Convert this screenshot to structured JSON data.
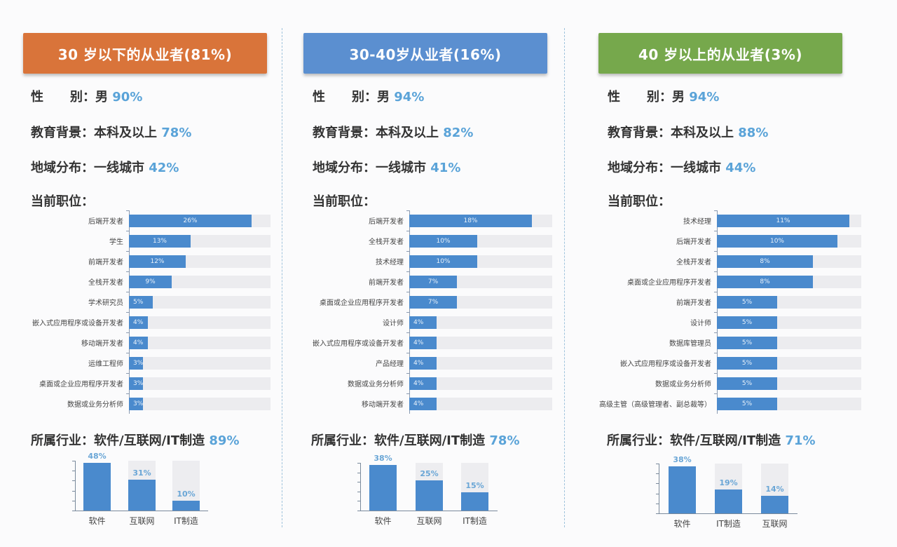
{
  "panels": [
    {
      "header": "30 岁以下的从业者(81%)",
      "header_color": "#d9743a",
      "gender_label_a": "性",
      "gender_label_b": "别",
      "gender_value": "：男",
      "gender_pct": "90%",
      "edu_label": "教育背景",
      "edu_value": "：本科及以上",
      "edu_pct": "78%",
      "region_label": "地域分布",
      "region_value": "：一线城市",
      "region_pct": "42%",
      "position_title": "当前职位：",
      "industry_label": "所属行业：软件/互联网/IT制造",
      "industry_pct": "89%"
    },
    {
      "header": "30-40岁从业者(16%)",
      "header_color": "#5b8fd0",
      "gender_label_a": "性",
      "gender_label_b": "别",
      "gender_value": "：男",
      "gender_pct": "94%",
      "edu_label": "教育背景",
      "edu_value": "：本科及以上",
      "edu_pct": "82%",
      "region_label": "地域分布",
      "region_value": "：一线城市",
      "region_pct": "41%",
      "position_title": "当前职位：",
      "industry_label": "所属行业：软件/互联网/IT制造",
      "industry_pct": "78%"
    },
    {
      "header": "40 岁以上的从业者(3%)",
      "header_color": "#76a84c",
      "gender_label_a": "性",
      "gender_label_b": "别",
      "gender_value": "：男",
      "gender_pct": "94%",
      "edu_label": "教育背景",
      "edu_value": "：本科及以上",
      "edu_pct": "88%",
      "region_label": "地域分布",
      "region_value": "：一线城市",
      "region_pct": "44%",
      "position_title": "当前职位：",
      "industry_label": "所属行业：软件/互联网/IT制造",
      "industry_pct": "71%"
    }
  ],
  "chart_data": [
    {
      "type": "bar",
      "orientation": "horizontal",
      "title": "30 岁以下的从业者(81%) - 当前职位",
      "categories": [
        "后端开发者",
        "学生",
        "前端开发者",
        "全栈开发者",
        "学术研究员",
        "嵌入式应用程序或设备开发者",
        "移动端开发者",
        "运维工程师",
        "桌面或企业应用程序开发者",
        "数据或业务分析师"
      ],
      "values": [
        26,
        13,
        12,
        9,
        5,
        4,
        4,
        3,
        3,
        3
      ],
      "labels": [
        "26%",
        "13%",
        "12%",
        "9%",
        "5%",
        "4%",
        "4%",
        "3%",
        "3%",
        "3%"
      ],
      "unit": "%",
      "xlim": [
        0,
        30
      ]
    },
    {
      "type": "bar",
      "orientation": "horizontal",
      "title": "30-40岁从业者(16%) - 当前职位",
      "categories": [
        "后端开发者",
        "全栈开发者",
        "技术经理",
        "前端开发者",
        "桌面或企业应用程序开发者",
        "设计师",
        "嵌入式应用程序或设备开发者",
        "产品经理",
        "数据或业务分析师",
        "移动端开发者"
      ],
      "values": [
        18,
        10,
        10,
        7,
        7,
        4,
        4,
        4,
        4,
        4
      ],
      "labels": [
        "18%",
        "10%",
        "10%",
        "7%",
        "7%",
        "4%",
        "4%",
        "4%",
        "4%",
        "4%"
      ],
      "unit": "%",
      "xlim": [
        0,
        21
      ]
    },
    {
      "type": "bar",
      "orientation": "horizontal",
      "title": "40 岁以上的从业者(3%) - 当前职位",
      "categories": [
        "技术经理",
        "后端开发者",
        "全栈开发者",
        "桌面或企业应用程序开发者",
        "前端开发者",
        "设计师",
        "数据库管理员",
        "嵌入式应用程序或设备开发者",
        "数据或业务分析师",
        "高级主管（高级管理者、副总裁等）"
      ],
      "values": [
        11,
        10,
        8,
        8,
        5,
        5,
        5,
        5,
        5,
        5
      ],
      "labels": [
        "11%",
        "10%",
        "8%",
        "8%",
        "5%",
        "5%",
        "5%",
        "5%",
        "5%",
        "5%"
      ],
      "unit": "%",
      "xlim": [
        0,
        12
      ]
    },
    {
      "type": "bar",
      "orientation": "vertical",
      "title": "所属行业：软件/互联网/IT制造 89%",
      "categories": [
        "软件",
        "互联网",
        "IT制造"
      ],
      "values": [
        48,
        31,
        10
      ],
      "labels": [
        "48%",
        "31%",
        "10%"
      ],
      "ylim": [
        0,
        50
      ]
    },
    {
      "type": "bar",
      "orientation": "vertical",
      "title": "所属行业：软件/互联网/IT制造 78%",
      "categories": [
        "软件",
        "互联网",
        "IT制造"
      ],
      "values": [
        38,
        25,
        15
      ],
      "labels": [
        "38%",
        "25%",
        "15%"
      ],
      "ylim": [
        0,
        40
      ]
    },
    {
      "type": "bar",
      "orientation": "vertical",
      "title": "所属行业：软件/互联网/IT制造 71%",
      "categories": [
        "软件",
        "IT制造",
        "互联网"
      ],
      "values": [
        38,
        19,
        14
      ],
      "labels": [
        "38%",
        "19%",
        "14%"
      ],
      "ylim": [
        0,
        40
      ]
    }
  ],
  "colors": {
    "bar": "#4a8acd",
    "track": "#ececef",
    "accent_pct": "#5aa3d8",
    "divider": "#9fc3dc"
  }
}
